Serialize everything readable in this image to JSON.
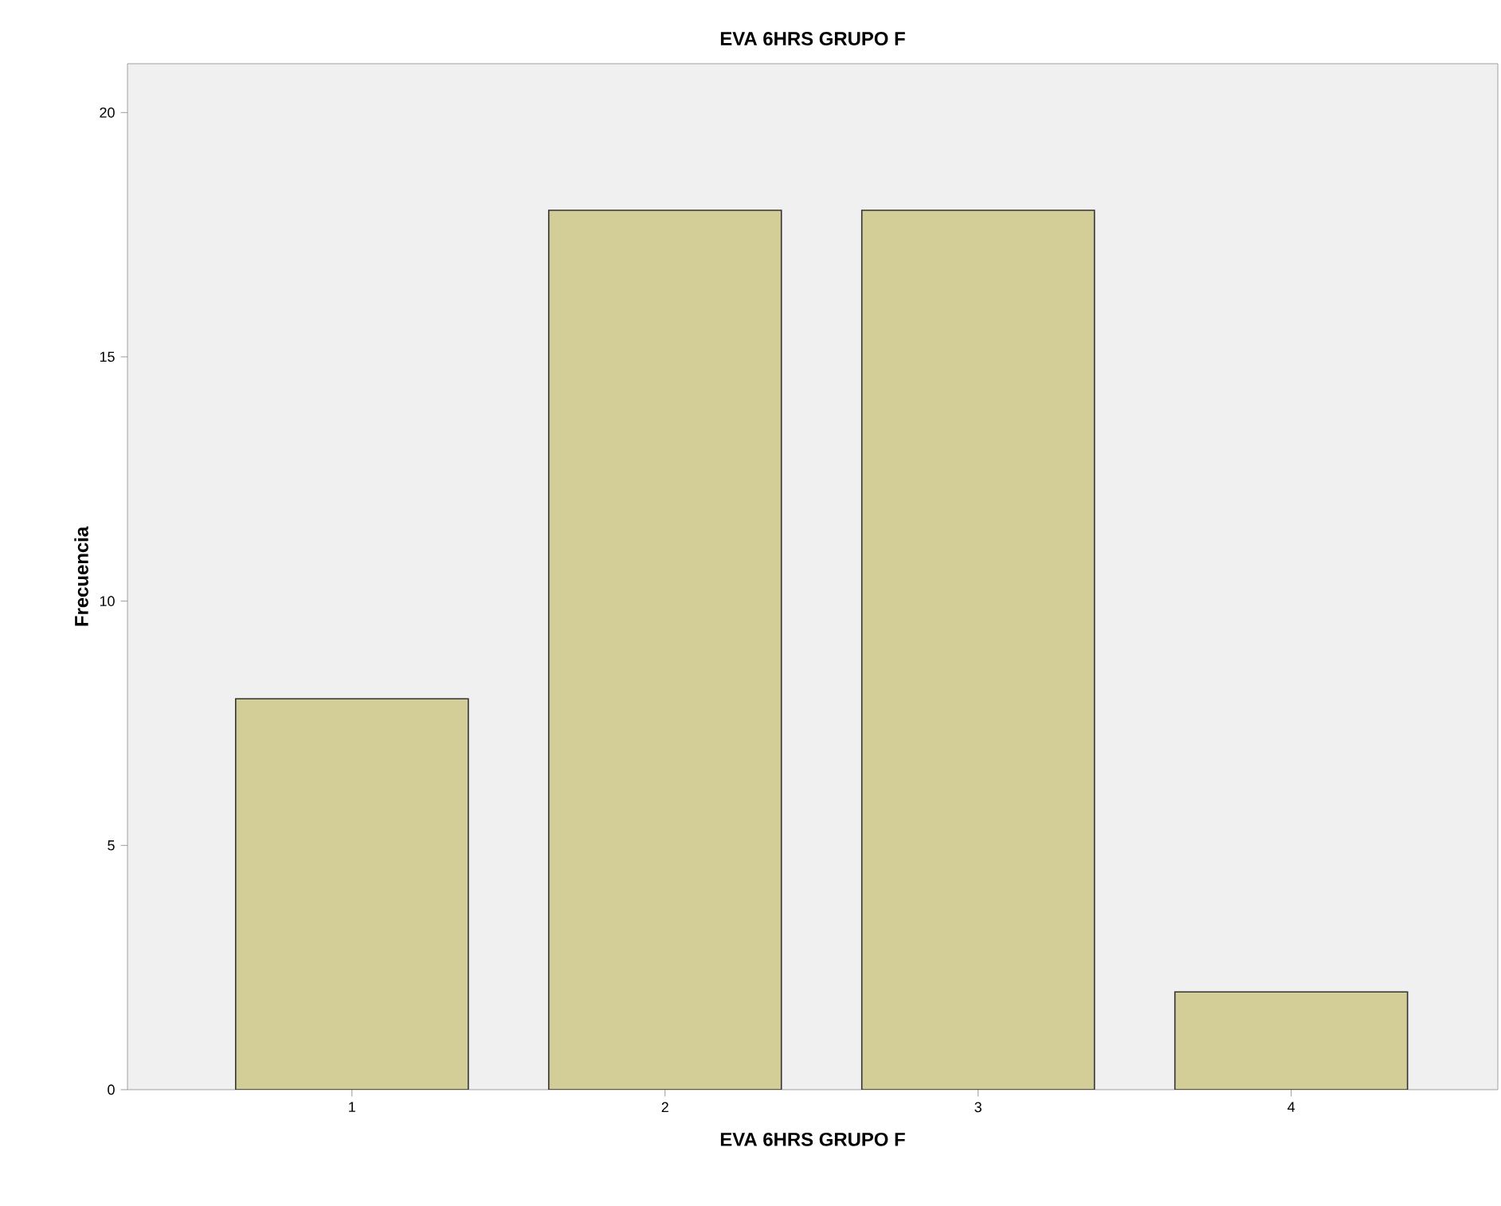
{
  "chart_data": {
    "type": "bar",
    "title": "EVA 6HRS GRUPO F",
    "xlabel": "EVA 6HRS GRUPO F",
    "ylabel": "Frecuencia",
    "categories": [
      "1",
      "2",
      "3",
      "4"
    ],
    "values": [
      8,
      18,
      18,
      2
    ],
    "color": "#d3ce98",
    "ylim": [
      0,
      21
    ],
    "yticks": [
      0,
      5,
      10,
      15,
      20
    ],
    "grid": false
  }
}
